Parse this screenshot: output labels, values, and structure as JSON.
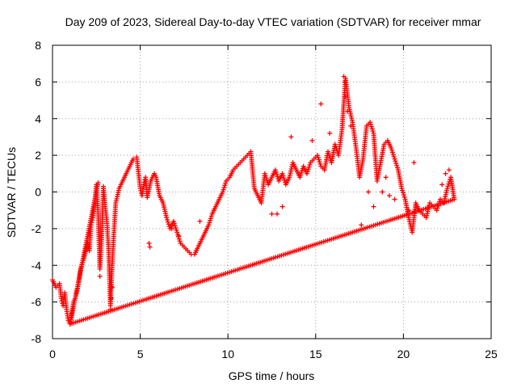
{
  "chart_data": {
    "type": "scatter",
    "title": "Day 209 of 2023, Sidereal Day-to-day VTEC variation (SDTVAR) for receiver mmar",
    "xlabel": "GPS time / hours",
    "ylabel": "SDTVAR / TECUs",
    "xlim": [
      0,
      25
    ],
    "ylim": [
      -8,
      8
    ],
    "xticks": [
      0,
      5,
      10,
      15,
      20,
      25
    ],
    "xtick_labels": [
      "0",
      "5",
      "10",
      "15",
      "20",
      "25"
    ],
    "yticks": [
      -8,
      -6,
      -4,
      -2,
      0,
      2,
      4,
      6,
      8
    ],
    "ytick_labels": [
      "-8",
      "-6",
      "-4",
      "-2",
      "0",
      "2",
      "4",
      "6",
      "8"
    ],
    "grid": true,
    "marker": "plus",
    "color": "#ff0000",
    "series": [
      {
        "name": "SDTVAR",
        "x": [
          0.0,
          0.2,
          0.4,
          0.5,
          0.6,
          0.7,
          0.8,
          0.9,
          1.0,
          1.1,
          1.2,
          1.3,
          1.4,
          1.5,
          1.6,
          1.8,
          2.0,
          2.1,
          2.2,
          2.3,
          2.4,
          2.5,
          2.6,
          2.7,
          2.8,
          2.9,
          3.0,
          3.1,
          3.2,
          3.3,
          3.4,
          3.5,
          3.6,
          3.8,
          4.0,
          4.2,
          4.4,
          4.6,
          4.8,
          5.0,
          5.1,
          5.2,
          5.3,
          5.4,
          5.6,
          5.8,
          5.9,
          6.1,
          6.3,
          6.5,
          6.7,
          6.9,
          7.1,
          7.3,
          7.5,
          7.7,
          7.9,
          8.1,
          8.3,
          8.5,
          8.7,
          8.9,
          9.1,
          9.3,
          9.5,
          9.7,
          9.9,
          10.1,
          10.3,
          10.5,
          10.7,
          10.9,
          11.1,
          11.3,
          11.5,
          11.7,
          11.9,
          12.1,
          12.3,
          12.5,
          12.7,
          12.9,
          13.1,
          13.3,
          13.5,
          13.7,
          13.9,
          14.1,
          14.3,
          14.5,
          14.7,
          14.9,
          15.1,
          15.3,
          15.5,
          15.7,
          15.9,
          16.1,
          16.3,
          16.5,
          16.7,
          16.9,
          17.1,
          17.3,
          17.5,
          17.7,
          17.9,
          18.1,
          18.3,
          18.5,
          18.7,
          18.9,
          19.1,
          19.3,
          19.5,
          19.7,
          19.9,
          20.1,
          20.3,
          20.5,
          20.7,
          20.9,
          21.1,
          21.3,
          21.5,
          21.7,
          21.9,
          22.1,
          22.3,
          22.5,
          22.7,
          22.9,
          1.0,
          2.6,
          2.7,
          3.3,
          3.35,
          3.4,
          5.5,
          5.55,
          12.8,
          13.1,
          15.3,
          16.6,
          16.65,
          16.7,
          16.8,
          17.0,
          18.8,
          19.5,
          20.6,
          22.2,
          22.4,
          22.6,
          20.3,
          17.6,
          18.0,
          18.3,
          19.0,
          19.2,
          14.8,
          15.8,
          13.6,
          12.5,
          8.4,
          9.2,
          7.2,
          6.8
        ],
        "y": [
          -4.8,
          -5.2,
          -5.0,
          -5.8,
          -6.2,
          -5.5,
          -6.4,
          -7.0,
          -7.2,
          -6.6,
          -6.0,
          -5.8,
          -5.4,
          -4.9,
          -4.2,
          -3.6,
          -2.8,
          -3.2,
          -1.8,
          -1.4,
          -0.6,
          0.4,
          -1.2,
          -4.2,
          -2.6,
          0.3,
          -0.8,
          -1.6,
          -3.2,
          -6.2,
          -4.0,
          -2.2,
          -0.6,
          0.2,
          0.6,
          1.0,
          1.4,
          1.8,
          1.9,
          0.2,
          -0.2,
          0.4,
          0.8,
          -0.3,
          0.6,
          1.0,
          0.8,
          -0.2,
          -0.6,
          -1.4,
          -2.0,
          -1.6,
          -2.2,
          -2.8,
          -3.0,
          -3.2,
          -3.4,
          -3.4,
          -3.0,
          -2.6,
          -2.2,
          -1.8,
          -1.2,
          -0.8,
          -0.4,
          0.0,
          0.6,
          0.8,
          1.2,
          1.4,
          1.6,
          1.8,
          2.0,
          2.2,
          0.2,
          -0.2,
          -0.6,
          1.0,
          0.4,
          0.8,
          1.2,
          0.6,
          1.0,
          0.4,
          0.8,
          1.6,
          1.2,
          0.8,
          1.4,
          1.0,
          1.6,
          1.8,
          2.0,
          1.4,
          1.2,
          2.2,
          1.6,
          2.6,
          2.0,
          3.4,
          6.2,
          4.6,
          3.8,
          2.4,
          0.8,
          1.8,
          3.6,
          3.8,
          3.2,
          0.6,
          1.6,
          2.6,
          2.8,
          2.4,
          1.8,
          1.2,
          0.2,
          -0.4,
          -1.4,
          -2.2,
          -0.6,
          -1.0,
          -1.2,
          -1.4,
          -0.6,
          -0.8,
          -1.0,
          -0.4,
          -0.6,
          0.2,
          0.8,
          -0.4,
          -7.2,
          0.5,
          -4.6,
          -6.4,
          -5.8,
          -5.2,
          -2.8,
          -3.0,
          -1.2,
          -0.8,
          4.8,
          6.3,
          6.0,
          5.2,
          4.4,
          3.6,
          0.0,
          -0.4,
          1.6,
          0.4,
          1.0,
          1.2,
          -1.0,
          -1.8,
          0.0,
          -0.8,
          0.8,
          -0.2,
          2.8,
          3.2,
          3.0,
          -1.2,
          -1.6,
          -1.0,
          -2.4,
          -2.0
        ]
      }
    ]
  }
}
